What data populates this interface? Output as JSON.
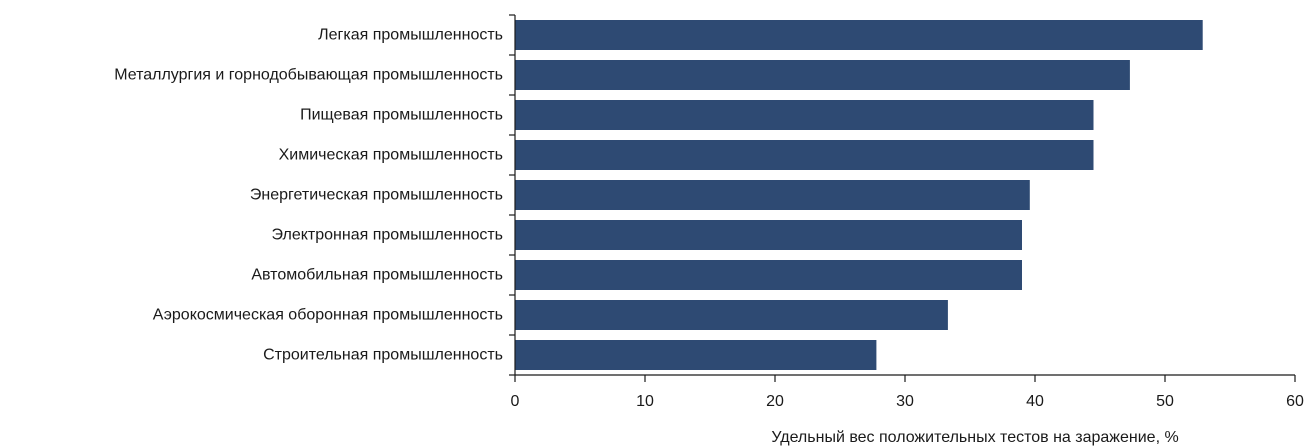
{
  "chart_data": {
    "type": "bar",
    "orientation": "horizontal",
    "categories": [
      "Легкая промышленность",
      "Металлургия и горнодобывающая промышленность",
      "Пищевая промышленность",
      "Химическая промышленность",
      "Энергетическая промышленность",
      "Электронная промышленность",
      "Автомобильная промышленность",
      "Аэрокосмическая оборонная промышленность",
      "Строительная промышленность"
    ],
    "values": [
      52.9,
      47.3,
      44.5,
      44.5,
      39.6,
      39.0,
      39.0,
      33.3,
      27.8
    ],
    "xlabel": "Удельный вес положительных тестов на заражение, %",
    "ylabel": "",
    "xlim": [
      0,
      60
    ],
    "xticks": [
      "0",
      "10",
      "20",
      "30",
      "40",
      "50",
      "60"
    ],
    "grid": false,
    "legend": "none",
    "bar_color": "#2e4a73"
  }
}
